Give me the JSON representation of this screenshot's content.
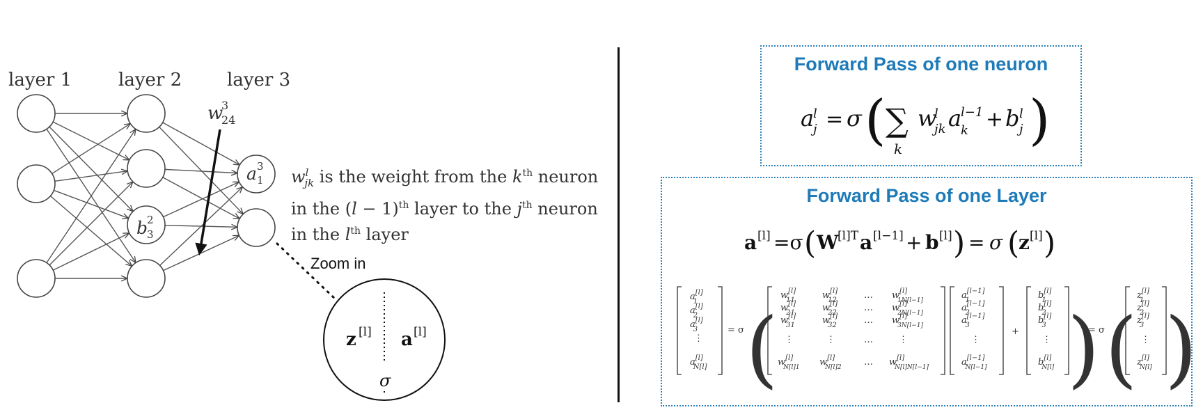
{
  "left_panel": {
    "layer_labels": [
      "layer 1",
      "layer 2",
      "layer 3"
    ],
    "weight_label": "w",
    "weight_sup": "3",
    "weight_sub": "24",
    "node_a13": {
      "base": "a",
      "sub": "1",
      "sup": "3"
    },
    "node_b32": {
      "base": "b",
      "sub": "3",
      "sup": "2"
    },
    "description_lines": [
      {
        "parts": [
          "w",
          "l",
          "jk",
          " is the weight from the ",
          "k",
          "th",
          " neuron"
        ]
      },
      {
        "parts": [
          "in the (",
          "l",
          " − 1)",
          "th",
          " layer to the ",
          "j",
          "th",
          " neuron"
        ]
      },
      {
        "parts": [
          "in the ",
          "l",
          "th",
          " layer"
        ]
      }
    ],
    "zoom_label": "Zoom in",
    "zoom_z": "z",
    "zoom_a": "a",
    "zoom_sup": "[l]",
    "zoom_sigma": "σ"
  },
  "neuron_box": {
    "title": "Forward Pass of one neuron"
  },
  "layer_box": {
    "title": "Forward Pass of one Layer"
  },
  "colors": {
    "title_blue": "#1f7bb8",
    "box_border": "#2d7fb8"
  }
}
